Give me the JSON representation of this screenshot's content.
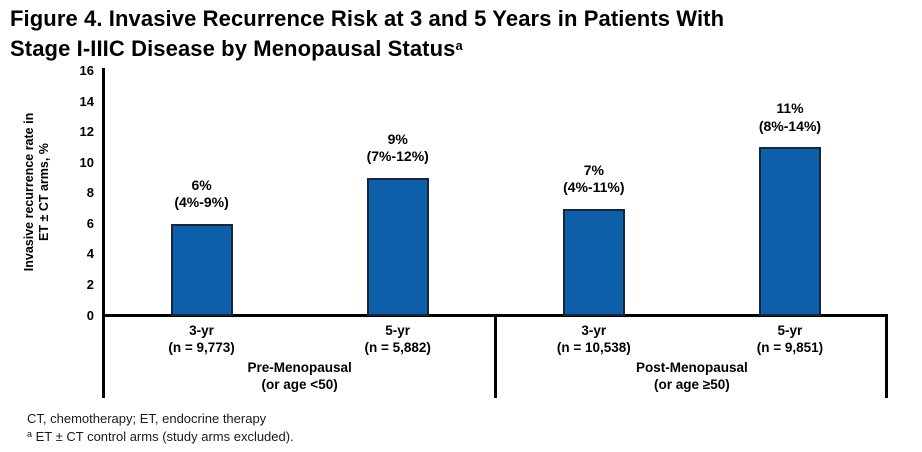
{
  "title": {
    "line1": "Figure 4. Invasive Recurrence Risk at 3 and 5 Years in Patients With",
    "line2": "Stage I-IIIC Disease by Menopausal Status",
    "superscript": "a"
  },
  "chart_data": {
    "type": "bar",
    "ylabel_line1": "Invasive recurrence rate in",
    "ylabel_line2": "ET ± CT arms, %",
    "ylim": [
      0,
      16
    ],
    "yticks": [
      0,
      2,
      4,
      6,
      8,
      10,
      12,
      14,
      16
    ],
    "grid": "off",
    "bar_color": "#0d5fa9",
    "bar_border_color": "#18253f",
    "categories": [
      "3-yr (n = 9,773)",
      "5-yr (n = 5,882)",
      "3-yr (n = 10,538)",
      "5-yr (n = 9,851)"
    ],
    "values": [
      6,
      9,
      7,
      11
    ],
    "groups": [
      {
        "label_line1": "Pre-Menopausal",
        "label_line2": "(or age <50)",
        "bars": [
          {
            "tick_line1": "3-yr",
            "tick_line2": "(n = 9,773)",
            "value": 6,
            "value_label": "6%",
            "ci_label": "(4%-9%)"
          },
          {
            "tick_line1": "5-yr",
            "tick_line2": "(n = 5,882)",
            "value": 9,
            "value_label": "9%",
            "ci_label": "(7%-12%)"
          }
        ]
      },
      {
        "label_line1": "Post-Menopausal",
        "label_line2": "(or age ≥50)",
        "bars": [
          {
            "tick_line1": "3-yr",
            "tick_line2": "(n = 10,538)",
            "value": 7,
            "value_label": "7%",
            "ci_label": "(4%-11%)"
          },
          {
            "tick_line1": "5-yr",
            "tick_line2": "(n = 9,851)",
            "value": 11,
            "value_label": "11%",
            "ci_label": "(8%-14%)"
          }
        ]
      }
    ]
  },
  "footnotes": {
    "line1": "CT, chemotherapy; ET, endocrine therapy",
    "line2_sup": "a",
    "line2": " ET ± CT control arms (study arms excluded)."
  }
}
